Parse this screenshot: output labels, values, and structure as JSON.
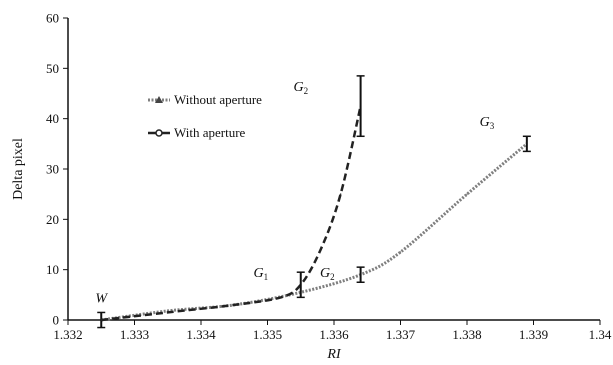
{
  "chart_data": {
    "type": "line",
    "xlabel": "RI",
    "ylabel": "Delta pixel",
    "xlim": [
      1.332,
      1.34
    ],
    "ylim": [
      0,
      60
    ],
    "xticks": [
      "1.332",
      "1.333",
      "1.334",
      "1.335",
      "1.336",
      "1.337",
      "1.338",
      "1.339",
      "1.34"
    ],
    "yticks": [
      "0",
      "10",
      "20",
      "30",
      "40",
      "50",
      "60"
    ],
    "grid": false,
    "legend_position": "upper-left",
    "series": [
      {
        "name": "Without aperture",
        "style": "dotted",
        "color": "#7f7f7f",
        "x": [
          1.3325,
          1.3335,
          1.3345,
          1.3355,
          1.3364,
          1.337,
          1.338,
          1.3389
        ],
        "y": [
          0,
          1.8,
          3.0,
          5.5,
          9.0,
          13.5,
          25.0,
          35.0
        ],
        "errors": [
          [
            1.3325,
            0,
            1.5
          ],
          [
            1.3364,
            9.0,
            1.5
          ],
          [
            1.3389,
            35.0,
            1.5
          ]
        ]
      },
      {
        "name": "With aperture",
        "style": "dashed",
        "color": "#222222",
        "x": [
          1.3325,
          1.3335,
          1.3345,
          1.3352,
          1.3355,
          1.3358,
          1.3361,
          1.3364
        ],
        "y": [
          0,
          1.5,
          3.0,
          4.5,
          7.0,
          14.0,
          25.0,
          42.5
        ],
        "errors": [
          [
            1.3355,
            7.0,
            2.5
          ],
          [
            1.3364,
            42.5,
            6.0
          ]
        ]
      }
    ],
    "annotations": [
      {
        "base": "W",
        "sub": "",
        "x": 1.3325,
        "y": 3.5
      },
      {
        "base": "G",
        "sub": "1",
        "x": 1.3349,
        "y": 8.5
      },
      {
        "base": "G",
        "sub": "2",
        "x": 1.3355,
        "y": 45.5
      },
      {
        "base": "G",
        "sub": "2",
        "x": 1.3359,
        "y": 8.5
      },
      {
        "base": "G",
        "sub": "3",
        "x": 1.3383,
        "y": 38.5
      }
    ]
  }
}
